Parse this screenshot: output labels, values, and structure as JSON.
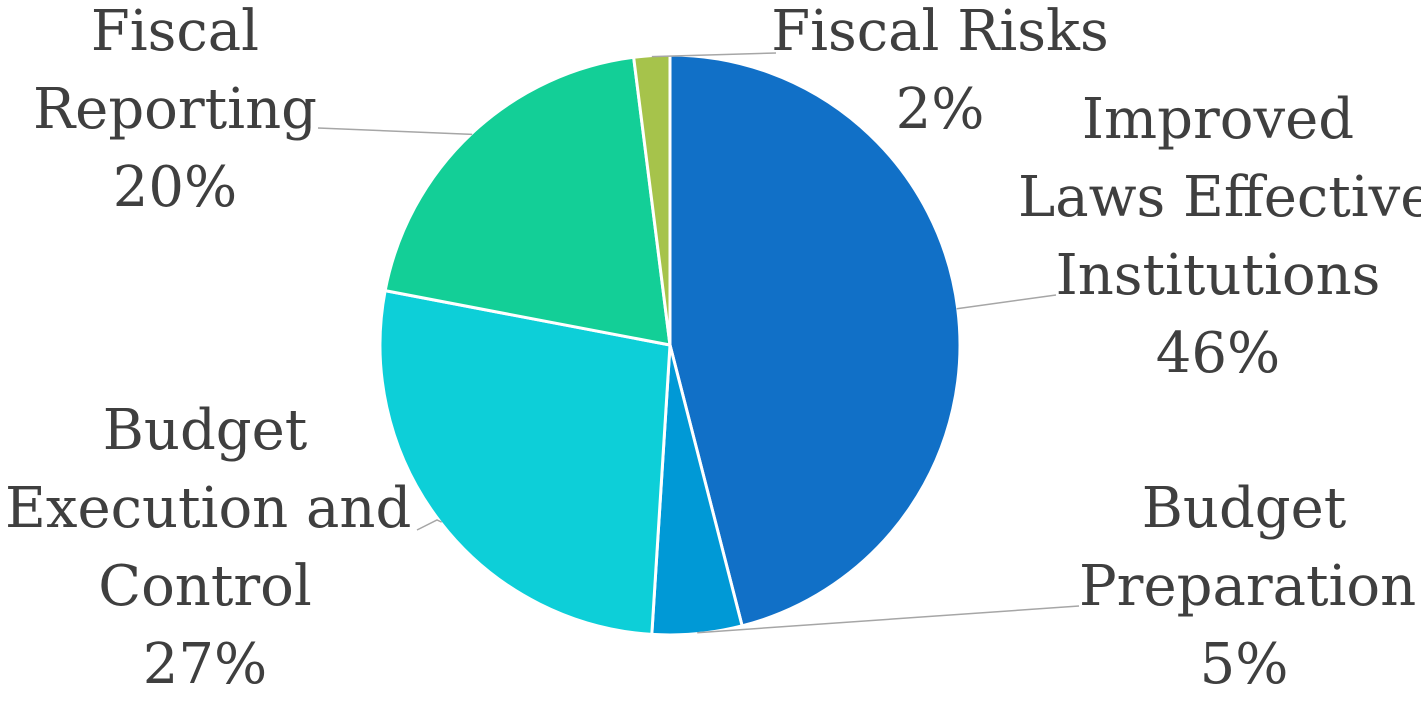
{
  "chart_data": {
    "type": "pie",
    "title": "",
    "slices": [
      {
        "name_lines": [
          "Improved",
          "Laws Effective",
          "Institutions"
        ],
        "value": 46,
        "value_label": "46%",
        "color": "#1170C7"
      },
      {
        "name_lines": [
          "Budget",
          "Preparation"
        ],
        "value": 5,
        "value_label": "5%",
        "color": "#0099D6"
      },
      {
        "name_lines": [
          "Budget",
          "Execution and",
          "Control"
        ],
        "value": 27,
        "value_label": "27%",
        "color": "#0DCFD8"
      },
      {
        "name_lines": [
          "Fiscal",
          "Reporting"
        ],
        "value": 20,
        "value_label": "20%",
        "color": "#13CF97"
      },
      {
        "name_lines": [
          "Fiscal Risks"
        ],
        "value": 2,
        "value_label": "2%",
        "color": "#A6C34B"
      }
    ],
    "legend": "none",
    "start_angle": "12 o'clock",
    "direction": "clockwise",
    "data_labels": "outside with leader lines"
  }
}
